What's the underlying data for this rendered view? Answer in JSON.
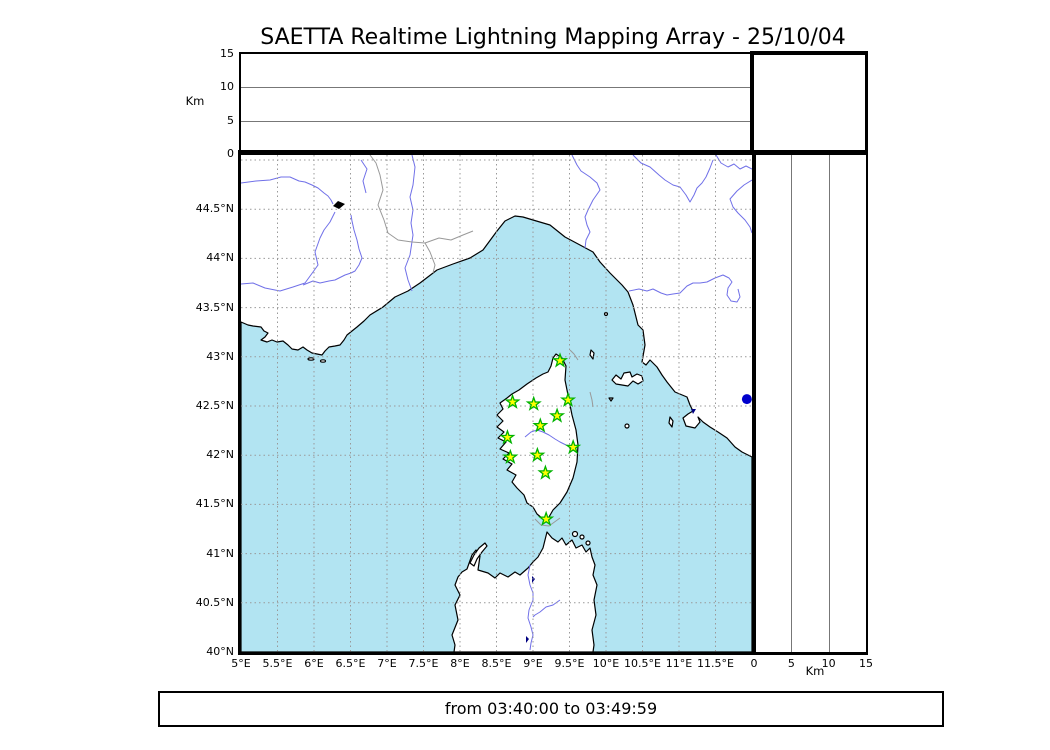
{
  "title": "SAETTA Realtime Lightning Mapping Array - 25/10/04",
  "footer": {
    "text": "from 03:40:00 to 03:49:59"
  },
  "colors": {
    "sea": "#b2e4f2",
    "land": "#ffffff",
    "coast": "#000000",
    "river": "#7070e8",
    "country_border": "#999999",
    "graticule": "#999999",
    "panel_gridline": "#777777",
    "station_fill": "#ffff00",
    "station_stroke": "#00b300",
    "event_dot": "#0000cc",
    "lake_dark": "#000080"
  },
  "chart_data": {
    "type": "scatter",
    "title": "SAETTA Realtime Lightning Mapping Array - 25/10/04",
    "time_window": "from 03:40:00 to 03:49:59",
    "map_panel": {
      "xlim": [
        5,
        12.0
      ],
      "ylim": [
        40,
        45.05
      ],
      "grid": true,
      "xticks": [
        {
          "v": 5,
          "label": "5°E"
        },
        {
          "v": 5.5,
          "label": "5.5°E"
        },
        {
          "v": 6,
          "label": "6°E"
        },
        {
          "v": 6.5,
          "label": "6.5°E"
        },
        {
          "v": 7,
          "label": "7°E"
        },
        {
          "v": 7.5,
          "label": "7.5°E"
        },
        {
          "v": 8,
          "label": "8°E"
        },
        {
          "v": 8.5,
          "label": "8.5°E"
        },
        {
          "v": 9,
          "label": "9°E"
        },
        {
          "v": 9.5,
          "label": "9.5°E"
        },
        {
          "v": 10,
          "label": "10°E"
        },
        {
          "v": 10.5,
          "label": "10.5°E"
        },
        {
          "v": 11,
          "label": "11°E"
        },
        {
          "v": 11.5,
          "label": "11.5°E"
        }
      ],
      "yticks": [
        {
          "v": 40,
          "label": "40°N"
        },
        {
          "v": 40.5,
          "label": "40.5°N"
        },
        {
          "v": 41,
          "label": "41°N"
        },
        {
          "v": 41.5,
          "label": "41.5°N"
        },
        {
          "v": 42,
          "label": "42°N"
        },
        {
          "v": 42.5,
          "label": "42.5°N"
        },
        {
          "v": 43,
          "label": "43°N"
        },
        {
          "v": 43.5,
          "label": "43.5°N"
        },
        {
          "v": 44,
          "label": "44°N"
        },
        {
          "v": 44.5,
          "label": "44.5°N"
        }
      ],
      "extra_grid_lats": [
        45
      ],
      "stations": [
        {
          "lon": 9.37,
          "lat": 42.96
        },
        {
          "lon": 8.72,
          "lat": 42.54
        },
        {
          "lon": 9.01,
          "lat": 42.52
        },
        {
          "lon": 9.48,
          "lat": 42.56
        },
        {
          "lon": 9.33,
          "lat": 42.4
        },
        {
          "lon": 9.1,
          "lat": 42.3
        },
        {
          "lon": 8.65,
          "lat": 42.18
        },
        {
          "lon": 9.55,
          "lat": 42.08
        },
        {
          "lon": 8.69,
          "lat": 41.98
        },
        {
          "lon": 9.06,
          "lat": 42.0
        },
        {
          "lon": 9.17,
          "lat": 41.82
        },
        {
          "lon": 9.18,
          "lat": 41.35
        }
      ],
      "events": [
        {
          "lon": 11.93,
          "lat": 42.57,
          "color": "#0000cc"
        }
      ]
    },
    "altitude_panel_top": {
      "ylabel": "Km",
      "ylim": [
        0,
        15
      ],
      "yticks": [
        {
          "v": 0,
          "label": "0"
        },
        {
          "v": 5,
          "label": "5"
        },
        {
          "v": 10,
          "label": "10"
        },
        {
          "v": 15,
          "label": "15"
        }
      ],
      "gridlines": [
        5,
        10
      ],
      "points": []
    },
    "altitude_panel_right": {
      "xlabel": "Km",
      "xlim": [
        0,
        15
      ],
      "xticks": [
        {
          "v": 0,
          "label": "0"
        },
        {
          "v": 5,
          "label": "5"
        },
        {
          "v": 10,
          "label": "10"
        },
        {
          "v": 15,
          "label": "15"
        }
      ],
      "gridlines": [
        5,
        10
      ],
      "points": []
    }
  }
}
